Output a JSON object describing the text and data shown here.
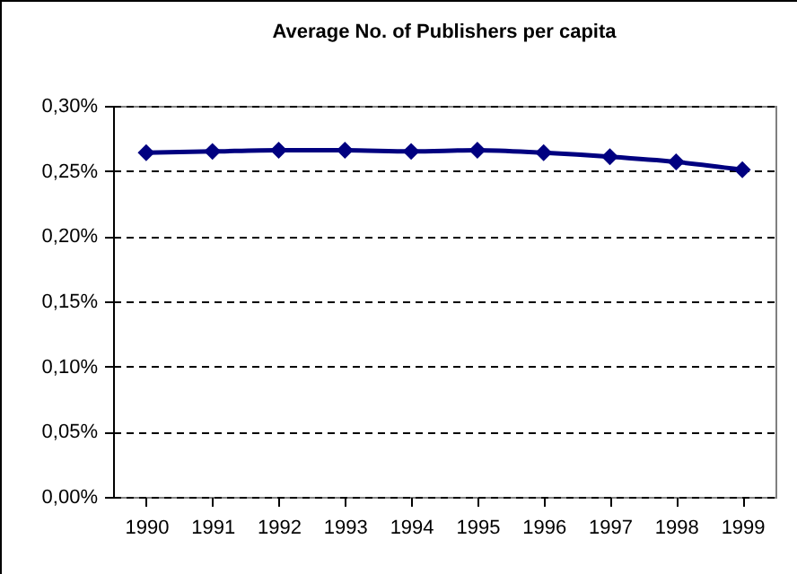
{
  "chart_data": {
    "type": "line",
    "title": "Average No. of Publishers per capita",
    "categories": [
      "1990",
      "1991",
      "1992",
      "1993",
      "1994",
      "1995",
      "1996",
      "1997",
      "1998",
      "1999"
    ],
    "series": [
      {
        "color": "#000080",
        "values": [
          0.264,
          0.265,
          0.266,
          0.266,
          0.265,
          0.266,
          0.264,
          0.261,
          0.257,
          0.251
        ]
      }
    ],
    "ylim": [
      0,
      0.3
    ],
    "yticks": [
      {
        "value": 0,
        "label": "0,00%"
      },
      {
        "value": 0.05,
        "label": "0,05%"
      },
      {
        "value": 0.1,
        "label": "0,10%"
      },
      {
        "value": 0.15,
        "label": "0,15%"
      },
      {
        "value": 0.2,
        "label": "0,20%"
      },
      {
        "value": 0.25,
        "label": "0,25%"
      },
      {
        "value": 0.3,
        "label": "0,30%"
      }
    ],
    "grid": "y",
    "marker": "diamond",
    "line_style": "solid",
    "legend": false
  }
}
